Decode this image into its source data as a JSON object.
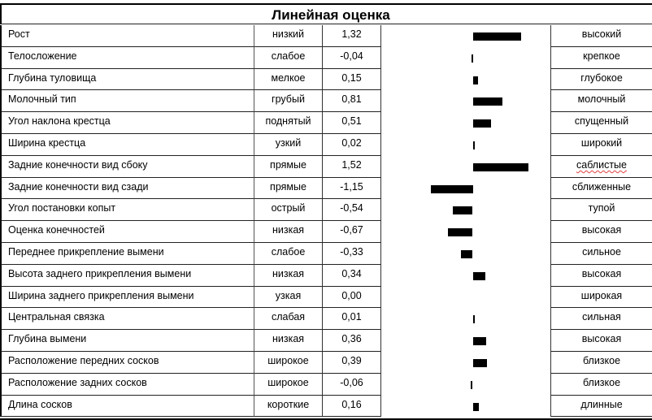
{
  "title": "Линейная оценка",
  "chart_data": {
    "type": "bar",
    "orientation": "horizontal",
    "title": "Линейная оценка",
    "zero_axis": 0,
    "grid": false,
    "categories": [
      "Рост",
      "Телосложение",
      "Глубина туловища",
      "Молочный тип",
      "Угол наклона крестца",
      "Ширина крестца",
      "Задние конечности вид сбоку",
      "Задние конечности вид сзади",
      "Угол постановки копыт",
      "Оценка конечностей",
      "Переднее прикрепление вымени",
      "Высота заднего прикрепления вымени",
      "Ширина заднего прикрепления вымени",
      "Центральная связка",
      "Глубина вымени",
      "Расположение передних сосков",
      "Расположение задних сосков",
      "Длина сосков"
    ],
    "values": [
      1.32,
      -0.04,
      0.15,
      0.81,
      0.51,
      0.02,
      1.52,
      -1.15,
      -0.54,
      -0.67,
      -0.33,
      0.34,
      0.0,
      0.01,
      0.36,
      0.39,
      -0.06,
      0.16
    ]
  },
  "rows": [
    {
      "name": "Рост",
      "low": "низкий",
      "value": "1,32",
      "num": 1.32,
      "high": "высокий"
    },
    {
      "name": "Телосложение",
      "low": "слабое",
      "value": "-0,04",
      "num": -0.04,
      "high": "крепкое"
    },
    {
      "name": "Глубина туловища",
      "low": "мелкое",
      "value": "0,15",
      "num": 0.15,
      "high": "глубокое"
    },
    {
      "name": "Молочный тип",
      "low": "грубый",
      "value": "0,81",
      "num": 0.81,
      "high": "молочный"
    },
    {
      "name": "Угол наклона крестца",
      "low": "поднятый",
      "value": "0,51",
      "num": 0.51,
      "high": "спущенный"
    },
    {
      "name": "Ширина крестца",
      "low": "узкий",
      "value": "0,02",
      "num": 0.02,
      "high": "широкий"
    },
    {
      "name": "Задние конечности вид сбоку",
      "low": "прямые",
      "value": "1,52",
      "num": 1.52,
      "high": "саблистые"
    },
    {
      "name": "Задние конечности вид сзади",
      "low": "прямые",
      "value": "-1,15",
      "num": -1.15,
      "high": "сближенные"
    },
    {
      "name": "Угол постановки копыт",
      "low": "острый",
      "value": "-0,54",
      "num": -0.54,
      "high": "тупой"
    },
    {
      "name": "Оценка конечностей",
      "low": "низкая",
      "value": "-0,67",
      "num": -0.67,
      "high": "высокая"
    },
    {
      "name": "Переднее прикрепление вымени",
      "low": "слабое",
      "value": "-0,33",
      "num": -0.33,
      "high": "сильное"
    },
    {
      "name": "Высота заднего прикрепления вымени",
      "low": "низкая",
      "value": "0,34",
      "num": 0.34,
      "high": "высокая"
    },
    {
      "name": "Ширина заднего прикрепления вымени",
      "low": "узкая",
      "value": "0,00",
      "num": 0.0,
      "high": "широкая"
    },
    {
      "name": "Центральная связка",
      "low": "слабая",
      "value": "0,01",
      "num": 0.01,
      "high": "сильная"
    },
    {
      "name": "Глубина вымени",
      "low": "низкая",
      "value": "0,36",
      "num": 0.36,
      "high": "высокая"
    },
    {
      "name": "Расположение передних сосков",
      "low": "широкое",
      "value": "0,39",
      "num": 0.39,
      "high": "близкое"
    },
    {
      "name": "Расположение задних сосков",
      "low": "широкое",
      "value": "-0,06",
      "num": -0.06,
      "high": "близкое"
    },
    {
      "name": "Длина сосков",
      "low": "короткие",
      "value": "0,16",
      "num": 0.16,
      "high": "длинные"
    }
  ]
}
